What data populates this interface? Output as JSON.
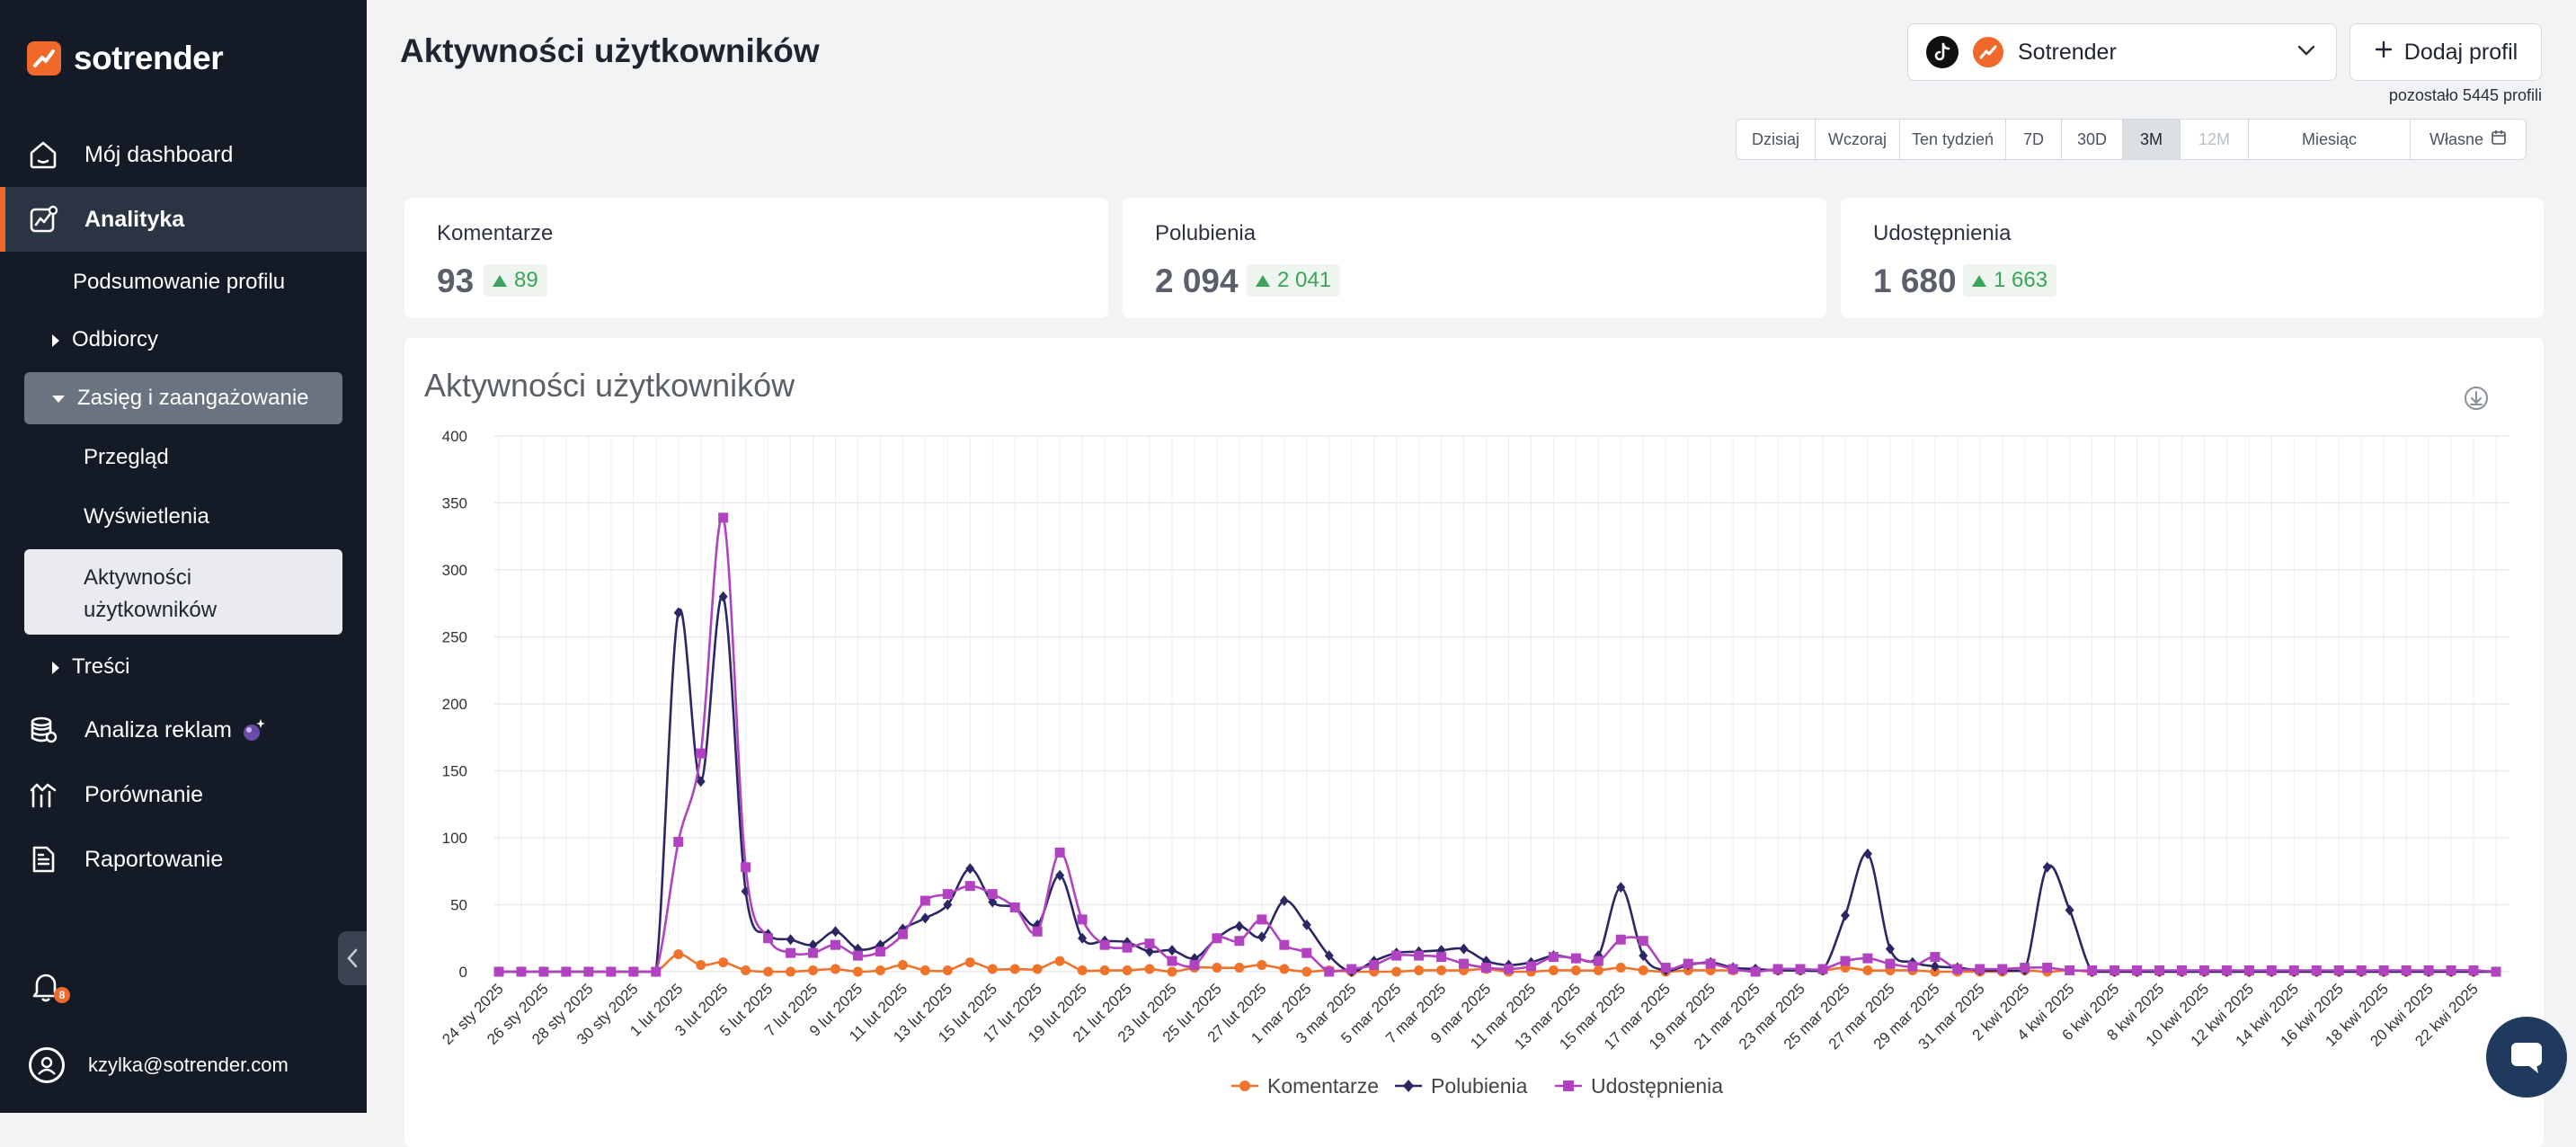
{
  "brand": {
    "name": "sotrender"
  },
  "sidebar": {
    "items": [
      {
        "label": "Mój dashboard",
        "icon": "home-icon"
      },
      {
        "label": "Analityka",
        "icon": "analytics-icon"
      },
      {
        "label": "Analiza reklam",
        "icon": "database-icon"
      },
      {
        "label": "Porównanie",
        "icon": "compare-icon"
      },
      {
        "label": "Raportowanie",
        "icon": "report-icon"
      }
    ],
    "analytics_sub": {
      "summary": "Podsumowanie profilu",
      "audience": "Odbiorcy",
      "reach": "Zasięg i zaangażowanie",
      "overview": "Przegląd",
      "views": "Wyświetlenia",
      "activity_line1": "Aktywności",
      "activity_line2": "użytkowników",
      "content": "Treści"
    },
    "notifications_count": "8",
    "user_email": "kzylka@sotrender.com"
  },
  "header": {
    "title": "Aktywności użytkowników",
    "profile_name": "Sotrender",
    "add_profile_label": "Dodaj profil",
    "remaining": "pozostało 5445 profili"
  },
  "date_ranges": [
    {
      "label": "Dzisiaj",
      "state": "normal"
    },
    {
      "label": "Wczoraj",
      "state": "normal"
    },
    {
      "label": "Ten tydzień",
      "state": "normal"
    },
    {
      "label": "7D",
      "state": "normal"
    },
    {
      "label": "30D",
      "state": "normal"
    },
    {
      "label": "3M",
      "state": "selected"
    },
    {
      "label": "12M",
      "state": "disabled"
    },
    {
      "label": "Miesiąc",
      "state": "normal"
    },
    {
      "label": "Własne",
      "state": "normal"
    }
  ],
  "kpis": [
    {
      "label": "Komentarze",
      "value": "93",
      "delta": "89"
    },
    {
      "label": "Polubienia",
      "value": "2 094",
      "delta": "2 041"
    },
    {
      "label": "Udostępnienia",
      "value": "1 680",
      "delta": "1 663"
    }
  ],
  "chart_data": {
    "type": "line",
    "title": "Aktywności użytkowników",
    "xlabel": "",
    "ylabel": "",
    "ylim": [
      0,
      400
    ],
    "yticks": [
      0,
      50,
      100,
      150,
      200,
      250,
      300,
      350,
      400
    ],
    "grid": true,
    "legend_position": "bottom",
    "x": [
      "24 sty 2025",
      "25 sty 2025",
      "26 sty 2025",
      "27 sty 2025",
      "28 sty 2025",
      "29 sty 2025",
      "30 sty 2025",
      "31 sty 2025",
      "1 lut 2025",
      "2 lut 2025",
      "3 lut 2025",
      "4 lut 2025",
      "5 lut 2025",
      "6 lut 2025",
      "7 lut 2025",
      "8 lut 2025",
      "9 lut 2025",
      "10 lut 2025",
      "11 lut 2025",
      "12 lut 2025",
      "13 lut 2025",
      "14 lut 2025",
      "15 lut 2025",
      "16 lut 2025",
      "17 lut 2025",
      "18 lut 2025",
      "19 lut 2025",
      "20 lut 2025",
      "21 lut 2025",
      "22 lut 2025",
      "23 lut 2025",
      "24 lut 2025",
      "25 lut 2025",
      "26 lut 2025",
      "27 lut 2025",
      "28 lut 2025",
      "1 mar 2025",
      "2 mar 2025",
      "3 mar 2025",
      "4 mar 2025",
      "5 mar 2025",
      "6 mar 2025",
      "7 mar 2025",
      "8 mar 2025",
      "9 mar 2025",
      "10 mar 2025",
      "11 mar 2025",
      "12 mar 2025",
      "13 mar 2025",
      "14 mar 2025",
      "15 mar 2025",
      "16 mar 2025",
      "17 mar 2025",
      "18 mar 2025",
      "19 mar 2025",
      "20 mar 2025",
      "21 mar 2025",
      "22 mar 2025",
      "23 mar 2025",
      "24 mar 2025",
      "25 mar 2025",
      "26 mar 2025",
      "27 mar 2025",
      "28 mar 2025",
      "29 mar 2025",
      "30 mar 2025",
      "31 mar 2025",
      "1 kwi 2025",
      "2 kwi 2025",
      "3 kwi 2025",
      "4 kwi 2025",
      "5 kwi 2025",
      "6 kwi 2025",
      "7 kwi 2025",
      "8 kwi 2025",
      "9 kwi 2025",
      "10 kwi 2025",
      "11 kwi 2025",
      "12 kwi 2025",
      "13 kwi 2025",
      "14 kwi 2025",
      "15 kwi 2025",
      "16 kwi 2025",
      "17 kwi 2025",
      "18 kwi 2025",
      "19 kwi 2025",
      "20 kwi 2025",
      "21 kwi 2025",
      "22 kwi 2025",
      "23 kwi 2025"
    ],
    "series": [
      {
        "name": "Komentarze",
        "color": "#f0732c",
        "marker": "circle",
        "values": [
          0,
          0,
          0,
          0,
          0,
          0,
          0,
          0,
          13,
          5,
          7,
          1,
          0,
          0,
          1,
          2,
          0,
          1,
          5,
          1,
          1,
          7,
          2,
          2,
          2,
          8,
          1,
          1,
          1,
          2,
          0,
          3,
          3,
          3,
          5,
          2,
          0,
          1,
          0,
          0,
          0,
          1,
          1,
          1,
          2,
          0,
          0,
          1,
          1,
          1,
          3,
          1,
          0,
          1,
          1,
          1,
          1,
          1,
          1,
          1,
          3,
          1,
          1,
          1,
          0,
          0,
          0,
          0,
          1,
          0,
          1,
          0,
          0,
          0,
          0,
          0,
          0,
          0,
          0,
          0,
          0,
          0,
          0,
          0,
          0,
          0,
          0,
          0,
          0,
          0
        ]
      },
      {
        "name": "Polubienia",
        "color": "#2b2664",
        "marker": "diamond",
        "values": [
          0,
          0,
          0,
          0,
          0,
          0,
          0,
          0,
          268,
          142,
          280,
          60,
          28,
          24,
          20,
          30,
          17,
          20,
          32,
          40,
          50,
          77,
          52,
          48,
          35,
          72,
          25,
          23,
          22,
          15,
          16,
          10,
          25,
          34,
          26,
          53,
          35,
          12,
          0,
          8,
          14,
          15,
          16,
          17,
          8,
          5,
          7,
          12,
          10,
          12,
          63,
          12,
          1,
          5,
          7,
          3,
          2,
          1,
          1,
          1,
          42,
          88,
          17,
          7,
          4,
          3,
          1,
          1,
          1,
          78,
          46,
          0,
          0,
          0,
          0,
          0,
          0,
          0,
          0,
          0,
          0,
          0,
          0,
          0,
          0,
          0,
          0,
          0,
          0,
          0
        ]
      },
      {
        "name": "Udostępnienia",
        "color": "#b143c0",
        "marker": "square",
        "values": [
          0,
          0,
          0,
          0,
          0,
          0,
          0,
          0,
          97,
          163,
          339,
          78,
          25,
          14,
          14,
          20,
          12,
          15,
          28,
          53,
          58,
          64,
          58,
          48,
          30,
          89,
          39,
          20,
          18,
          21,
          8,
          5,
          25,
          23,
          39,
          20,
          14,
          0,
          2,
          5,
          12,
          12,
          11,
          6,
          3,
          2,
          4,
          11,
          10,
          8,
          24,
          23,
          3,
          6,
          6,
          2,
          0,
          2,
          2,
          2,
          8,
          10,
          6,
          4,
          11,
          2,
          2,
          2,
          3,
          3,
          1,
          1,
          1,
          1,
          1,
          1,
          1,
          1,
          1,
          1,
          1,
          1,
          1,
          1,
          1,
          1,
          1,
          1,
          1,
          0
        ]
      }
    ]
  }
}
